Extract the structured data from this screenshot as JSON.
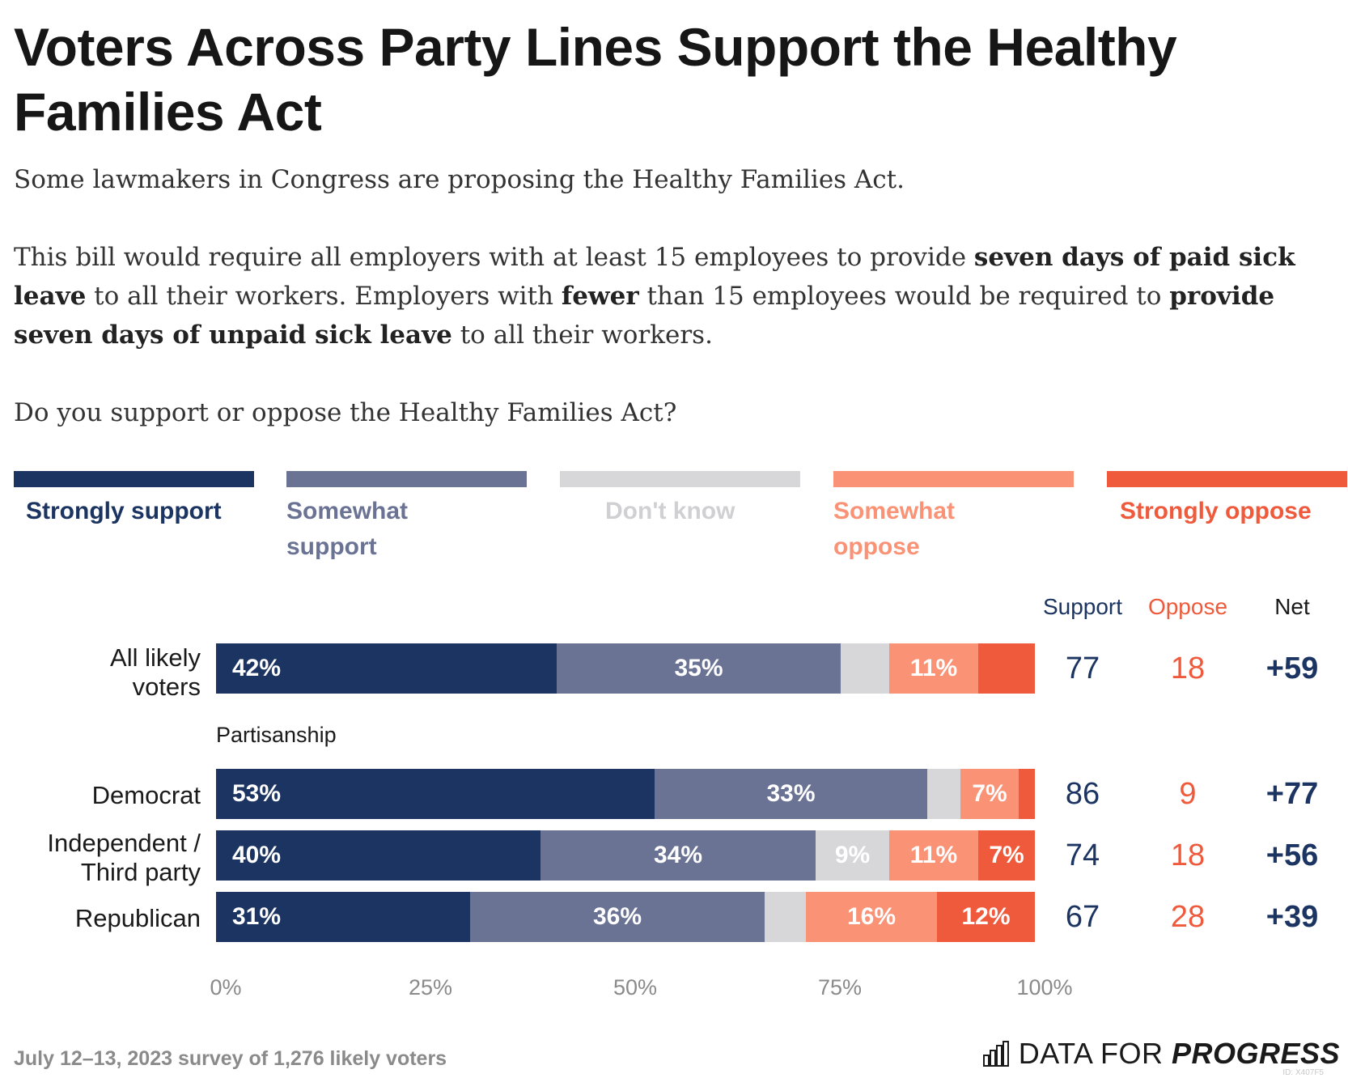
{
  "header": {
    "title": "Voters Across Party Lines Support the Healthy Families Act",
    "intro_1": "Some lawmakers in Congress are proposing the Healthy Families Act.",
    "intro_2_parts": [
      "This bill would require all employers with at least 15 employees to provide ",
      "seven days of paid sick leave",
      " to all their workers. Employers with ",
      "fewer",
      " than 15 employees would be required to ",
      "provide seven days of unpaid sick leave",
      " to all their workers."
    ],
    "question": "Do you support or oppose the Healthy Families Act?"
  },
  "legend": [
    {
      "label": "Strongly support",
      "color": "#1c3461"
    },
    {
      "label": "Somewhat support",
      "color": "#6b7394"
    },
    {
      "label": "Don't know",
      "color": "#d7d7d9"
    },
    {
      "label": "Somewhat oppose",
      "color": "#fa9276"
    },
    {
      "label": "Strongly oppose",
      "color": "#ef5a3c"
    }
  ],
  "columns": {
    "support": "Support",
    "oppose": "Oppose",
    "net": "Net"
  },
  "colors": {
    "support": "#1c3461",
    "oppose": "#ef5a3c",
    "net": "#1c3461"
  },
  "chart_data": {
    "type": "bar",
    "orientation": "horizontal",
    "stacked": true,
    "xlim": [
      0,
      100
    ],
    "x_ticks": [
      "0%",
      "25%",
      "50%",
      "75%",
      "100%"
    ],
    "group_label": "Partisanship",
    "categories": [
      "All likely voters",
      "Democrat",
      "Independent / Third party",
      "Republican"
    ],
    "series": [
      {
        "name": "Strongly support",
        "values": [
          42,
          53,
          40,
          31
        ],
        "labels": [
          "42%",
          "53%",
          "40%",
          "31%"
        ]
      },
      {
        "name": "Somewhat support",
        "values": [
          35,
          33,
          34,
          36
        ],
        "labels": [
          "35%",
          "33%",
          "34%",
          "36%"
        ]
      },
      {
        "name": "Don't know",
        "values": [
          6,
          4,
          9,
          5
        ],
        "labels": [
          "",
          "",
          "9%",
          ""
        ]
      },
      {
        "name": "Somewhat oppose",
        "values": [
          11,
          7,
          11,
          16
        ],
        "labels": [
          "11%",
          "7%",
          "11%",
          "16%"
        ]
      },
      {
        "name": "Strongly oppose",
        "values": [
          7,
          2,
          7,
          12
        ],
        "labels": [
          "",
          "",
          "7%",
          "12%"
        ]
      }
    ],
    "support": [
      "77",
      "86",
      "74",
      "67"
    ],
    "oppose": [
      "18",
      "9",
      "18",
      "28"
    ],
    "net": [
      "+59",
      "+77",
      "+56",
      "+39"
    ]
  },
  "footer": {
    "note": "July 12–13, 2023 survey of 1,276 likely voters",
    "brand_light": "DATA FOR ",
    "brand_bold": "PROGRESS",
    "id": "ID: X407F5"
  }
}
